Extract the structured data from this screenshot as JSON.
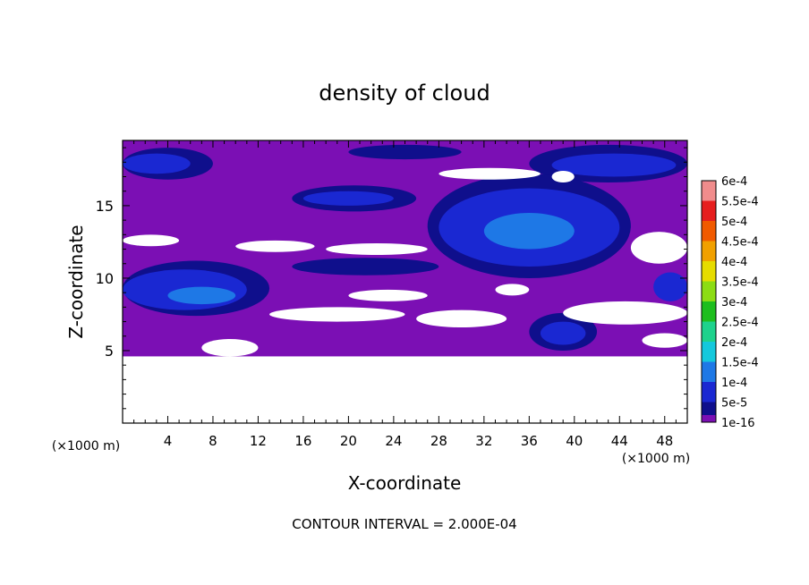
{
  "chart_data": {
    "type": "heatmap",
    "title": "density of cloud",
    "xlabel": "X-coordinate",
    "ylabel": "Z-coordinate",
    "x_unit": "(×1000 m)",
    "y_unit": "(×1000 m)",
    "xlim": [
      0,
      50
    ],
    "ylim": [
      0,
      19.5
    ],
    "x_ticks": [
      4,
      8,
      12,
      16,
      20,
      24,
      28,
      32,
      36,
      40,
      44,
      48
    ],
    "y_ticks": [
      5,
      10,
      15
    ],
    "footer": "CONTOUR INTERVAL = 2.000E-04",
    "colorbar": {
      "labels": [
        "1e-16",
        "5e-5",
        "1e-4",
        "1.5e-4",
        "2e-4",
        "2.5e-4",
        "3e-4",
        "3.5e-4",
        "4e-4",
        "4.5e-4",
        "5e-4",
        "5.5e-4",
        "6e-4"
      ],
      "colors": [
        "#7b0fb4",
        "#0f0f8c",
        "#1a28d2",
        "#1e78e6",
        "#14c8dc",
        "#1ed28c",
        "#1ebe1e",
        "#8cdc14",
        "#e6dc00",
        "#f0a000",
        "#f05a00",
        "#e61e1e",
        "#f08c8c"
      ]
    },
    "field_regions": [
      {
        "level": "1e-16",
        "desc": "background cloud layer",
        "x": [
          0,
          50
        ],
        "z": [
          4.6,
          19.5
        ]
      },
      {
        "level": "5e-5",
        "x": [
          0,
          8
        ],
        "z": [
          16.8,
          19.0
        ]
      },
      {
        "level": "1e-4",
        "x": [
          0,
          6
        ],
        "z": [
          17.2,
          18.6
        ]
      },
      {
        "level": "5e-5",
        "x": [
          36,
          50
        ],
        "z": [
          16.6,
          19.2
        ]
      },
      {
        "level": "1e-4",
        "x": [
          38,
          49
        ],
        "z": [
          17.0,
          18.6
        ]
      },
      {
        "level": "5e-5",
        "x": [
          15,
          26
        ],
        "z": [
          14.6,
          16.4
        ]
      },
      {
        "level": "1e-4",
        "x": [
          16,
          24
        ],
        "z": [
          15.0,
          16.0
        ]
      },
      {
        "level": "5e-5",
        "x": [
          27,
          45
        ],
        "z": [
          10.0,
          17.2
        ]
      },
      {
        "level": "1e-4",
        "x": [
          28,
          44
        ],
        "z": [
          10.8,
          16.2
        ]
      },
      {
        "level": "1.5e-4",
        "x": [
          32,
          40
        ],
        "z": [
          12.0,
          14.5
        ]
      },
      {
        "level": "5e-5",
        "x": [
          0,
          13
        ],
        "z": [
          7.4,
          11.2
        ]
      },
      {
        "level": "1e-4",
        "x": [
          0,
          11
        ],
        "z": [
          7.8,
          10.6
        ]
      },
      {
        "level": "1.5e-4",
        "x": [
          4,
          10
        ],
        "z": [
          8.2,
          9.4
        ]
      },
      {
        "level": "5e-5",
        "x": [
          36,
          42
        ],
        "z": [
          5.0,
          7.6
        ]
      },
      {
        "level": "1e-4",
        "x": [
          37,
          41
        ],
        "z": [
          5.4,
          7.0
        ]
      },
      {
        "level": "1e-4",
        "x": [
          47,
          50
        ],
        "z": [
          8.4,
          10.4
        ]
      },
      {
        "level": "5e-5",
        "x": [
          15,
          28
        ],
        "z": [
          10.2,
          11.4
        ]
      },
      {
        "level": "5e-5",
        "x": [
          20,
          30
        ],
        "z": [
          18.2,
          19.2
        ]
      }
    ],
    "gaps": [
      {
        "desc": "clear air below cloud",
        "x": [
          0,
          50
        ],
        "z": [
          0,
          4.6
        ]
      },
      {
        "x": [
          28,
          37
        ],
        "z": [
          16.8,
          17.6
        ]
      },
      {
        "x": [
          38,
          40
        ],
        "z": [
          16.6,
          17.4
        ]
      },
      {
        "x": [
          45,
          50
        ],
        "z": [
          11.0,
          13.2
        ]
      },
      {
        "x": [
          0,
          5
        ],
        "z": [
          12.2,
          13.0
        ]
      },
      {
        "x": [
          10,
          17
        ],
        "z": [
          11.8,
          12.6
        ]
      },
      {
        "x": [
          18,
          27
        ],
        "z": [
          11.6,
          12.4
        ]
      },
      {
        "x": [
          20,
          27
        ],
        "z": [
          8.4,
          9.2
        ]
      },
      {
        "x": [
          33,
          36
        ],
        "z": [
          8.8,
          9.6
        ]
      },
      {
        "x": [
          39,
          50
        ],
        "z": [
          6.8,
          8.4
        ]
      },
      {
        "x": [
          13,
          25
        ],
        "z": [
          7.0,
          8.0
        ]
      },
      {
        "x": [
          26,
          34
        ],
        "z": [
          6.6,
          7.8
        ]
      },
      {
        "x": [
          7,
          12
        ],
        "z": [
          4.6,
          5.8
        ]
      },
      {
        "x": [
          46,
          50
        ],
        "z": [
          5.2,
          6.2
        ]
      }
    ]
  }
}
